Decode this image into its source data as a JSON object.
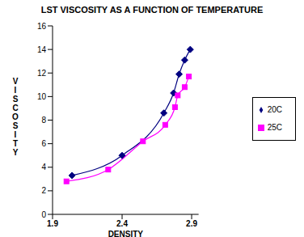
{
  "chart_data": {
    "type": "line",
    "title": "LST VISCOSITY AS A FUNCTION OF TEMPERATURE",
    "x_label": "DENSITY",
    "y_label": "VISCOSITY",
    "xlim": [
      1.9,
      2.95
    ],
    "xticks": [
      1.9,
      2.4,
      2.9
    ],
    "ylim": [
      0,
      16
    ],
    "yticks": [
      0,
      2,
      4,
      6,
      8,
      10,
      12,
      14,
      16
    ],
    "grid": false,
    "legend": "right",
    "series": [
      {
        "name": "20C",
        "color": "#000080",
        "marker": "diamond",
        "line_style": "solid",
        "x": [
          2.04,
          2.4,
          2.7,
          2.77,
          2.81,
          2.85,
          2.89
        ],
        "values": [
          3.3,
          5.0,
          8.6,
          10.3,
          11.9,
          13.1,
          14.0
        ]
      },
      {
        "name": "25C",
        "color": "#FF00FF",
        "marker": "square",
        "line_style": "solid",
        "x": [
          2.0,
          2.3,
          2.55,
          2.71,
          2.78,
          2.8,
          2.85,
          2.88
        ],
        "values": [
          2.8,
          3.8,
          6.2,
          7.6,
          9.1,
          10.1,
          10.8,
          11.7
        ]
      }
    ]
  }
}
